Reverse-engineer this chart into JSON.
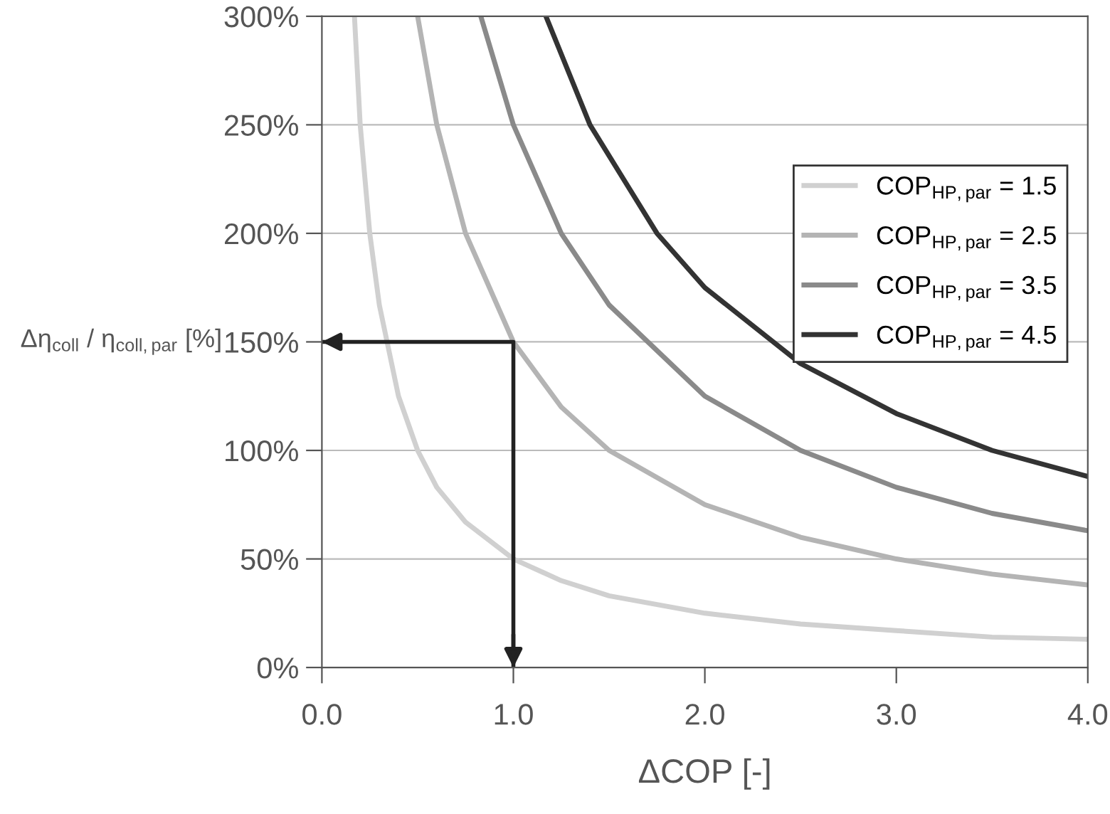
{
  "chart_data": {
    "type": "line",
    "xlabel": "ΔCOP [-]",
    "ylabel": "Δη$_{coll}$ / η$_{coll,par}$ [%]",
    "xlim": [
      0,
      4
    ],
    "ylim": [
      0,
      300
    ],
    "xticks": [
      {
        "value": 0,
        "label": "0.0"
      },
      {
        "value": 1,
        "label": "1.0"
      },
      {
        "value": 2,
        "label": "2.0"
      },
      {
        "value": 3,
        "label": "3.0"
      },
      {
        "value": 4,
        "label": "4.0"
      }
    ],
    "yticks": [
      {
        "value": 0,
        "label": "0%"
      },
      {
        "value": 50,
        "label": "50%"
      },
      {
        "value": 100,
        "label": "100%"
      },
      {
        "value": 150,
        "label": "150%"
      },
      {
        "value": 200,
        "label": "200%"
      },
      {
        "value": 250,
        "label": "250%"
      },
      {
        "value": 300,
        "label": "300%"
      }
    ],
    "grid": "y",
    "legend": "right",
    "marker": "none",
    "line_style": "solid",
    "series": [
      {
        "name": "COP$_{HP,par}$ = 1.5",
        "color": "#d0d0d0",
        "x": [
          0.17,
          0.2,
          0.25,
          0.3,
          0.4,
          0.5,
          0.6,
          0.75,
          1,
          1.25,
          1.5,
          2,
          2.5,
          3,
          3.5,
          4
        ],
        "values": [
          300,
          250,
          200,
          167,
          125,
          100,
          83,
          67,
          50,
          40,
          33,
          25,
          20,
          17,
          14,
          13
        ]
      },
      {
        "name": "COP$_{HP,par}$ = 2.5",
        "color": "#b4b4b4",
        "x": [
          0.5,
          0.6,
          0.75,
          1,
          1.25,
          1.5,
          2,
          2.5,
          3,
          3.5,
          4
        ],
        "values": [
          300,
          250,
          200,
          150,
          120,
          100,
          75,
          60,
          50,
          43,
          38
        ]
      },
      {
        "name": "COP$_{HP,par}$ = 3.5",
        "color": "#8a8a8a",
        "x": [
          0.83,
          1,
          1.25,
          1.5,
          2,
          2.5,
          3,
          3.5,
          4
        ],
        "values": [
          300,
          250,
          200,
          167,
          125,
          100,
          83,
          71,
          63
        ]
      },
      {
        "name": "COP$_{HP,par}$ = 4.5",
        "color": "#333333",
        "x": [
          1.17,
          1.4,
          1.75,
          2,
          2.5,
          3,
          3.5,
          4
        ],
        "values": [
          300,
          250,
          200,
          175,
          140,
          117,
          100,
          88
        ]
      },
      {
        "color": "#222222",
        "x": [
          0,
          1.0,
          1.0
        ],
        "values": [
          150,
          150,
          0
        ]
      }
    ]
  }
}
